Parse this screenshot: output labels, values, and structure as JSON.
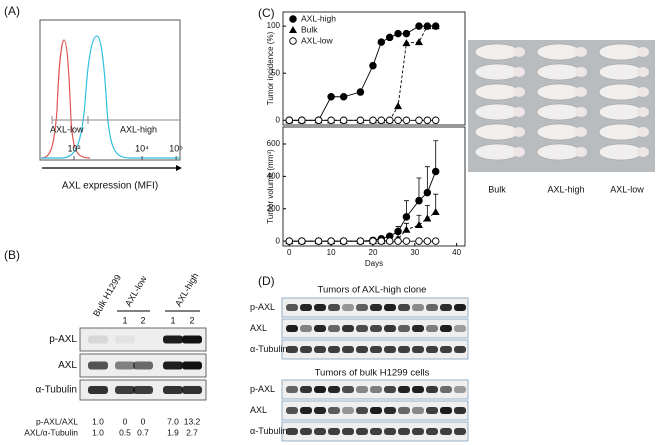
{
  "panels": {
    "a": "(A)",
    "b": "(B)",
    "c": "(C)",
    "d": "(D)"
  },
  "chart_data": [
    {
      "type": "density",
      "xlabel": "AXL expression (MFI)",
      "xscale": "log",
      "xlim": [
        10,
        130000
      ],
      "xticks": [
        {
          "value": 100,
          "label": "10²"
        },
        {
          "value": 10000,
          "label": "10⁴"
        },
        {
          "value": 100000,
          "label": "10⁵"
        }
      ],
      "gates": [
        "AXL-low",
        "AXL-high"
      ]
    },
    {
      "type": "line",
      "ylabel": "Tumor incidence (%)",
      "x": [
        0,
        3,
        7,
        10,
        13,
        17,
        20,
        22,
        24,
        26,
        28,
        31,
        33,
        35
      ],
      "xlim": [
        -1.5,
        42
      ],
      "ylim": [
        -5,
        115
      ],
      "yticks": [
        0,
        50,
        100
      ],
      "legend": "upper left",
      "series": [
        {
          "name": "AXL-high",
          "color": "#000000",
          "marker": "circle-filled",
          "dash": false,
          "values": [
            0,
            0,
            0,
            25,
            25,
            30,
            58,
            83,
            88,
            92,
            92,
            100,
            100,
            100
          ]
        },
        {
          "name": "Bulk",
          "color": "#000000",
          "marker": "triangle",
          "dash": true,
          "values": [
            0,
            0,
            0,
            0,
            0,
            0,
            0,
            0,
            0,
            15,
            82,
            83,
            100,
            100
          ]
        },
        {
          "name": "AXL-low",
          "color": "#000000",
          "marker": "circle-open",
          "dash": false,
          "values": [
            0,
            0,
            0,
            0,
            0,
            0,
            0,
            0,
            0,
            0,
            0,
            0,
            0,
            0
          ]
        }
      ]
    },
    {
      "type": "line",
      "ylabel": "Tumor volume (mm³)",
      "xlabel": "Days",
      "x": [
        0,
        3,
        7,
        10,
        13,
        17,
        20,
        22,
        24,
        26,
        28,
        31,
        33,
        35
      ],
      "xlim": [
        -1.5,
        42
      ],
      "xticks": [
        0,
        10,
        20,
        30,
        40
      ],
      "ylim": [
        -30,
        705
      ],
      "yticks": [
        0,
        200,
        400,
        600
      ],
      "series": [
        {
          "color": "#000000",
          "marker": "circle-filled",
          "dash": false,
          "values": [
            0,
            0,
            0,
            0,
            0,
            0,
            5,
            15,
            30,
            60,
            150,
            250,
            300,
            430
          ],
          "errors": [
            0,
            0,
            0,
            0,
            0,
            0,
            0,
            5,
            10,
            30,
            100,
            140,
            160,
            190
          ]
        },
        {
          "color": "#000000",
          "marker": "triangle",
          "dash": true,
          "values": [
            0,
            0,
            0,
            0,
            0,
            0,
            0,
            0,
            5,
            15,
            70,
            100,
            140,
            180
          ],
          "errors": [
            0,
            0,
            0,
            0,
            0,
            0,
            0,
            0,
            5,
            10,
            40,
            60,
            80,
            110
          ]
        },
        {
          "color": "#000000",
          "marker": "circle-open",
          "dash": false,
          "values": [
            0,
            0,
            0,
            0,
            0,
            0,
            0,
            0,
            0,
            0,
            0,
            0,
            0,
            0
          ],
          "errors": [
            0,
            0,
            0,
            0,
            0,
            0,
            0,
            0,
            0,
            0,
            0,
            0,
            0,
            0
          ]
        }
      ]
    }
  ],
  "photo": {
    "labels": [
      "Bulk",
      "AXL-high",
      "AXL-low"
    ]
  },
  "blot_b": {
    "lanes": [
      "Bulk H1299",
      "AXL-low",
      "AXL-high"
    ],
    "clones": [
      "1",
      "2",
      "1",
      "2"
    ],
    "rows": [
      "p-AXL",
      "AXL",
      "α-Tubulin"
    ],
    "quant": [
      {
        "label": "p-AXL/AXL",
        "values": [
          "1.0",
          "0",
          "0",
          "7.0",
          "13.2"
        ]
      },
      {
        "label": "AXL/α-Tubulin",
        "values": [
          "1.0",
          "0.5",
          "0.7",
          "1.9",
          "2.7"
        ]
      }
    ]
  },
  "blot_d": {
    "groups": [
      {
        "title": "Tumors of AXL-high clone",
        "rows": [
          "p-AXL",
          "AXL",
          "α-Tubulin"
        ]
      },
      {
        "title": "Tumors of bulk H1299 cells",
        "rows": [
          "p-AXL",
          "AXL",
          "α-Tubulin"
        ]
      }
    ]
  }
}
